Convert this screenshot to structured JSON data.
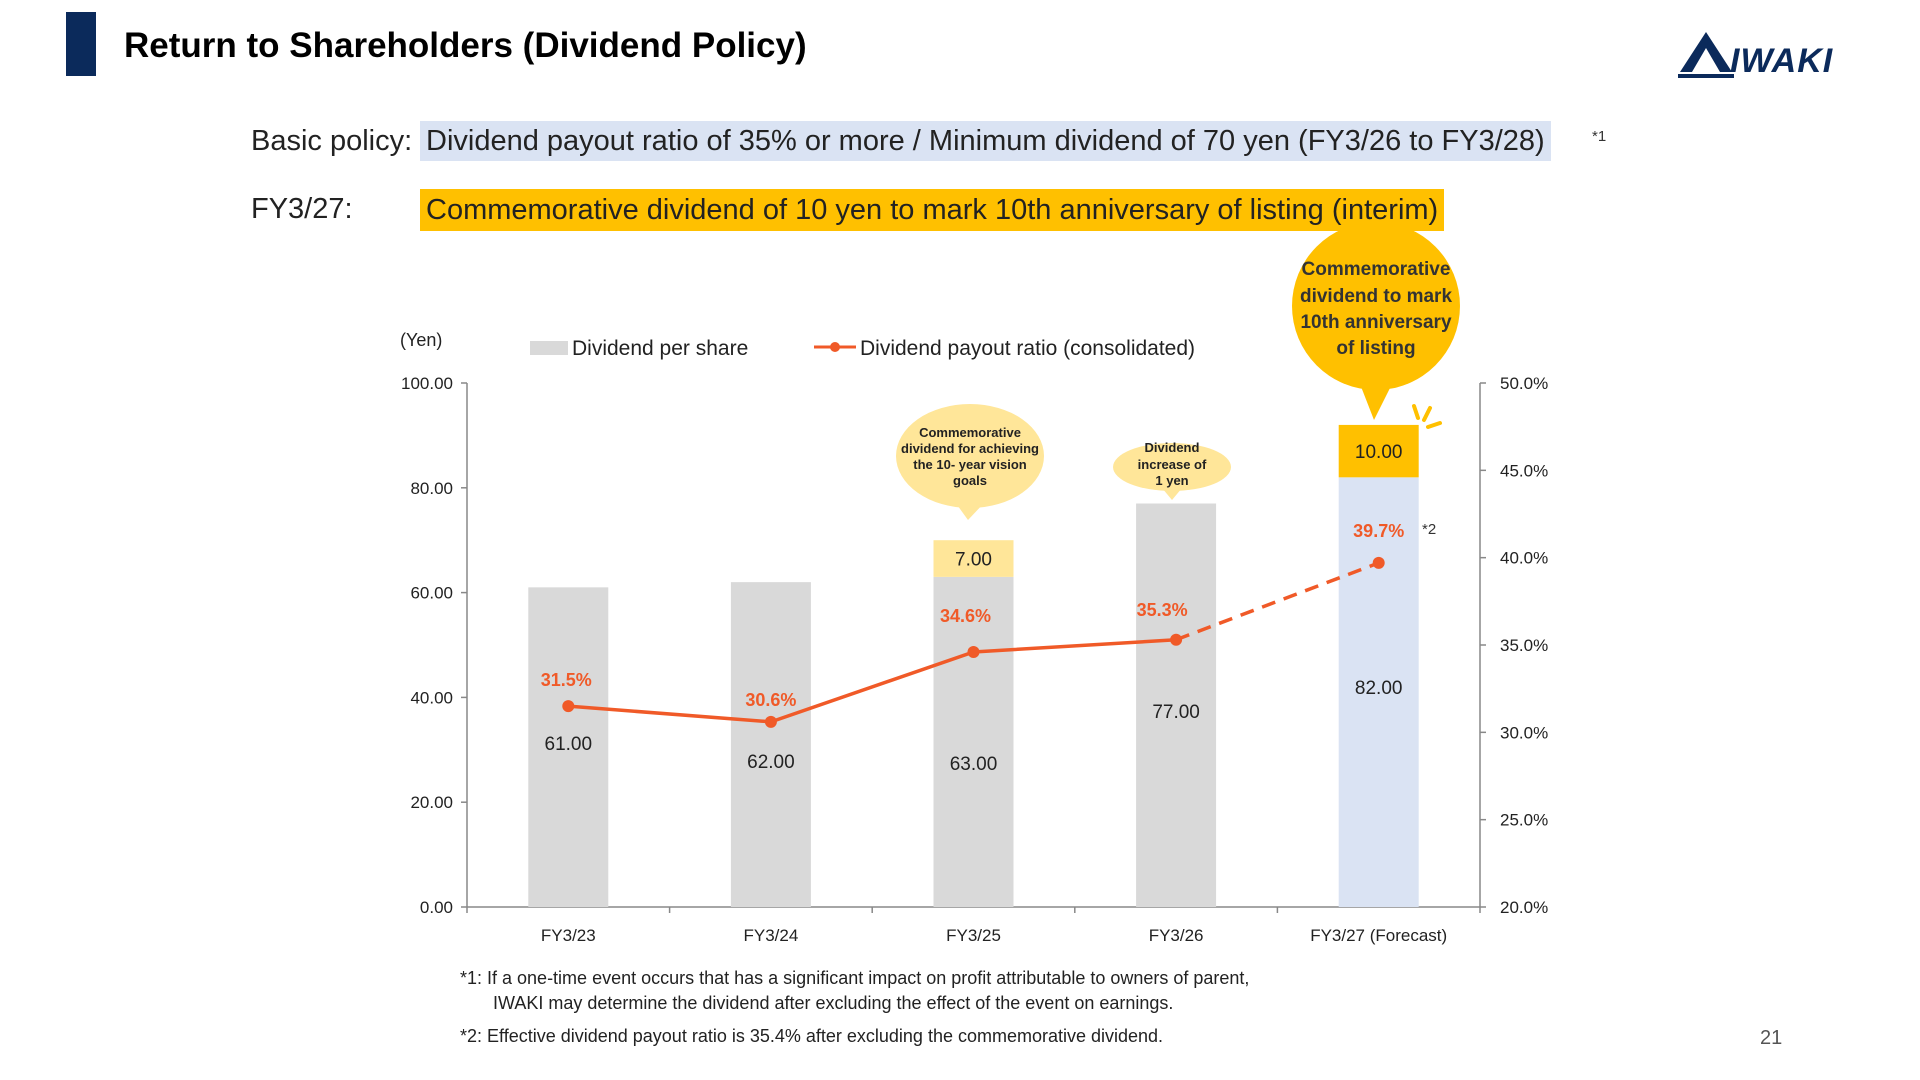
{
  "header": {
    "title": "Return to Shareholders (Dividend Policy)",
    "logo_text": "IWAKI",
    "brand_color": "#0b2a5b"
  },
  "policy": {
    "basic_label": "Basic policy:",
    "basic_text": "Dividend payout ratio of 35% or more / Minimum dividend of 70 yen (FY3/26 to FY3/28)",
    "basic_note": "*1",
    "fy_label": "FY3/27:",
    "fy_text": "Commemorative dividend of 10 yen to mark 10th anniversary of listing (interim)"
  },
  "chart_data": {
    "type": "bar",
    "categories": [
      "FY3/23",
      "FY3/24",
      "FY3/25",
      "FY3/26",
      "FY3/27 (Forecast)"
    ],
    "y_unit_label": "(Yen)",
    "ylim": [
      0,
      100
    ],
    "y_ticks": [
      "0.00",
      "20.00",
      "40.00",
      "60.00",
      "80.00",
      "100.00"
    ],
    "y2lim": [
      20,
      50
    ],
    "y2_ticks": [
      "20.0%",
      "25.0%",
      "30.0%",
      "35.0%",
      "40.0%",
      "45.0%",
      "50.0%"
    ],
    "legend": {
      "bar_label": "Dividend per share",
      "line_label": "Dividend payout ratio (consolidated)",
      "placement": "top"
    },
    "series": [
      {
        "name": "Dividend per share",
        "kind": "bar",
        "values": [
          61.0,
          62.0,
          63.0,
          77.0,
          82.0
        ],
        "labels": [
          "61.00",
          "62.00",
          "63.00",
          "77.00",
          "82.00"
        ]
      },
      {
        "kind": "bar-stack",
        "values": [
          0,
          0,
          7.0,
          0,
          10.0
        ],
        "labels": [
          "",
          "",
          "7.00",
          "",
          "10.00"
        ]
      },
      {
        "name": "Dividend payout ratio (consolidated)",
        "kind": "line",
        "axis": "right",
        "values": [
          31.5,
          30.6,
          34.6,
          35.3,
          39.7
        ],
        "labels": [
          "31.5%",
          "30.6%",
          "34.6%",
          "35.3%",
          "39.7%"
        ],
        "forecast_dashed_last": true
      }
    ],
    "annotations": {
      "fy25_bubble": "Commemorative dividend for achieving the 10- year vision goals",
      "fy26_bubble": "Dividend increase of 1 yen",
      "fy27_bubble": "Commemorative dividend to mark 10th anniversary of listing",
      "fy27_note": "*2"
    },
    "colors": {
      "bar": "#d9d9d9",
      "forecast_bar": "#dae3f3",
      "commemorative": "#ffc000",
      "line": "#f05a28",
      "bubble_fy25": "#ffe699"
    },
    "grid": false
  },
  "footnotes": {
    "note1_line1": "*1: If a one-time event occurs that has a significant impact on profit attributable to owners of parent,",
    "note1_line2": "IWAKI may determine the dividend after excluding the effect of the event on earnings.",
    "note2": "*2: Effective dividend payout ratio is 35.4% after excluding the commemorative dividend."
  },
  "page_number": "21"
}
